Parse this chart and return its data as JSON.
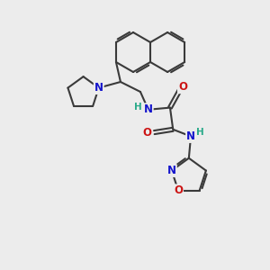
{
  "background_color": "#ececec",
  "bond_color": "#3a3a3a",
  "bond_width": 1.5,
  "atom_colors": {
    "N": "#1414cc",
    "O": "#cc1414",
    "H": "#2aaa8a",
    "C": "#3a3a3a"
  },
  "font_size_atom": 8.5,
  "fig_width": 3.0,
  "fig_height": 3.0,
  "dpi": 100
}
